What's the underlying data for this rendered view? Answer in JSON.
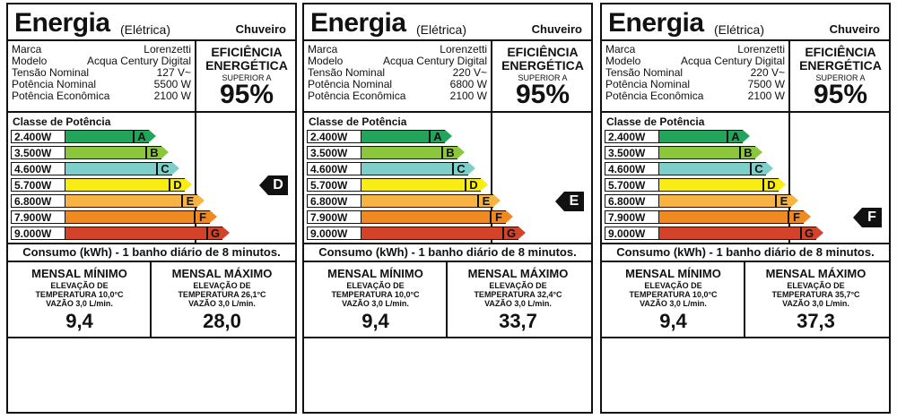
{
  "labels": [
    {
      "title": "Energia",
      "subtitle": "(Elétrica)",
      "type": "Chuveiro",
      "specs": [
        {
          "key": "Marca",
          "value": "Lorenzetti"
        },
        {
          "key": "Modelo",
          "value": "Acqua Century Digital"
        },
        {
          "key": "Tensão Nominal",
          "value": "127 V~"
        },
        {
          "key": "Potência Nominal",
          "value": "5500 W"
        },
        {
          "key": "Potência Econômica",
          "value": "2100 W"
        }
      ],
      "efficiency": {
        "line1": "EFICIÊNCIA",
        "line2": "ENERGÉTICA",
        "sup": "SUPERIOR A",
        "value": "95%"
      },
      "class_heading": "Classe de Potência",
      "bars": [
        {
          "watts": "2.400W",
          "letter": "A",
          "color": "#22a55a"
        },
        {
          "watts": "3.500W",
          "letter": "B",
          "color": "#8cc63f"
        },
        {
          "watts": "4.600W",
          "letter": "C",
          "color": "#7ecfc9"
        },
        {
          "watts": "5.700W",
          "letter": "D",
          "color": "#f7ec14"
        },
        {
          "watts": "6.800W",
          "letter": "E",
          "color": "#f7b442"
        },
        {
          "watts": "7.900W",
          "letter": "F",
          "color": "#ef8a22"
        },
        {
          "watts": "9.000W",
          "letter": "G",
          "color": "#d2432a"
        }
      ],
      "indicator": "D",
      "consumo": "Consumo (kWh) - 1 banho diário de 8 minutos.",
      "min": {
        "head": "MENSAL MÍNIMO",
        "l1": "ELEVAÇÃO DE",
        "l2": "TEMPERATURA 10,0°C",
        "l3": "VAZÃO 3,0 L/min.",
        "value": "9,4"
      },
      "max": {
        "head": "MENSAL MÁXIMO",
        "l1": "ELEVAÇÃO DE",
        "l2": "TEMPERATURA 26,1°C",
        "l3": "VAZÃO 3,0 L/min.",
        "value": "28,0"
      }
    },
    {
      "title": "Energia",
      "subtitle": "(Elétrica)",
      "type": "Chuveiro",
      "specs": [
        {
          "key": "Marca",
          "value": "Lorenzetti"
        },
        {
          "key": "Modelo",
          "value": "Acqua Century Digital"
        },
        {
          "key": "Tensão Nominal",
          "value": "220 V~"
        },
        {
          "key": "Potência Nominal",
          "value": "6800 W"
        },
        {
          "key": "Potência Econômica",
          "value": "2100 W"
        }
      ],
      "efficiency": {
        "line1": "EFICIÊNCIA",
        "line2": "ENERGÉTICA",
        "sup": "SUPERIOR A",
        "value": "95%"
      },
      "class_heading": "Classe de Potência",
      "bars": [
        {
          "watts": "2.400W",
          "letter": "A",
          "color": "#22a55a"
        },
        {
          "watts": "3.500W",
          "letter": "B",
          "color": "#8cc63f"
        },
        {
          "watts": "4.600W",
          "letter": "C",
          "color": "#7ecfc9"
        },
        {
          "watts": "5.700W",
          "letter": "D",
          "color": "#f7ec14"
        },
        {
          "watts": "6.800W",
          "letter": "E",
          "color": "#f7b442"
        },
        {
          "watts": "7.900W",
          "letter": "F",
          "color": "#ef8a22"
        },
        {
          "watts": "9.000W",
          "letter": "G",
          "color": "#d2432a"
        }
      ],
      "indicator": "E",
      "consumo": "Consumo (kWh) - 1 banho diário de 8 minutos.",
      "min": {
        "head": "MENSAL MÍNIMO",
        "l1": "ELEVAÇÃO DE",
        "l2": "TEMPERATURA 10,0°C",
        "l3": "VAZÃO 3,0 L/min.",
        "value": "9,4"
      },
      "max": {
        "head": "MENSAL MÁXIMO",
        "l1": "ELEVAÇÃO DE",
        "l2": "TEMPERATURA 32,4°C",
        "l3": "VAZÃO 3,0 L/min.",
        "value": "33,7"
      }
    },
    {
      "title": "Energia",
      "subtitle": "(Elétrica)",
      "type": "Chuveiro",
      "specs": [
        {
          "key": "Marca",
          "value": "Lorenzetti"
        },
        {
          "key": "Modelo",
          "value": "Acqua Century Digital"
        },
        {
          "key": "Tensão Nominal",
          "value": "220 V~"
        },
        {
          "key": "Potência Nominal",
          "value": "7500 W"
        },
        {
          "key": "Potência Econômica",
          "value": "2100 W"
        }
      ],
      "efficiency": {
        "line1": "EFICIÊNCIA",
        "line2": "ENERGÉTICA",
        "sup": "SUPERIOR A",
        "value": "95%"
      },
      "class_heading": "Classe de Potência",
      "bars": [
        {
          "watts": "2.400W",
          "letter": "A",
          "color": "#22a55a"
        },
        {
          "watts": "3.500W",
          "letter": "B",
          "color": "#8cc63f"
        },
        {
          "watts": "4.600W",
          "letter": "C",
          "color": "#7ecfc9"
        },
        {
          "watts": "5.700W",
          "letter": "D",
          "color": "#f7ec14"
        },
        {
          "watts": "6.800W",
          "letter": "E",
          "color": "#f7b442"
        },
        {
          "watts": "7.900W",
          "letter": "F",
          "color": "#ef8a22"
        },
        {
          "watts": "9.000W",
          "letter": "G",
          "color": "#d2432a"
        }
      ],
      "indicator": "F",
      "consumo": "Consumo (kWh) - 1 banho diário de 8 minutos.",
      "min": {
        "head": "MENSAL MÍNIMO",
        "l1": "ELEVAÇÃO DE",
        "l2": "TEMPERATURA 10,0°C",
        "l3": "VAZÃO 3,0 L/min.",
        "value": "9,4"
      },
      "max": {
        "head": "MENSAL MÁXIMO",
        "l1": "ELEVAÇÃO DE",
        "l2": "TEMPERATURA 35,7°C",
        "l3": "VAZÃO 3,0 L/min.",
        "value": "37,3"
      }
    }
  ]
}
